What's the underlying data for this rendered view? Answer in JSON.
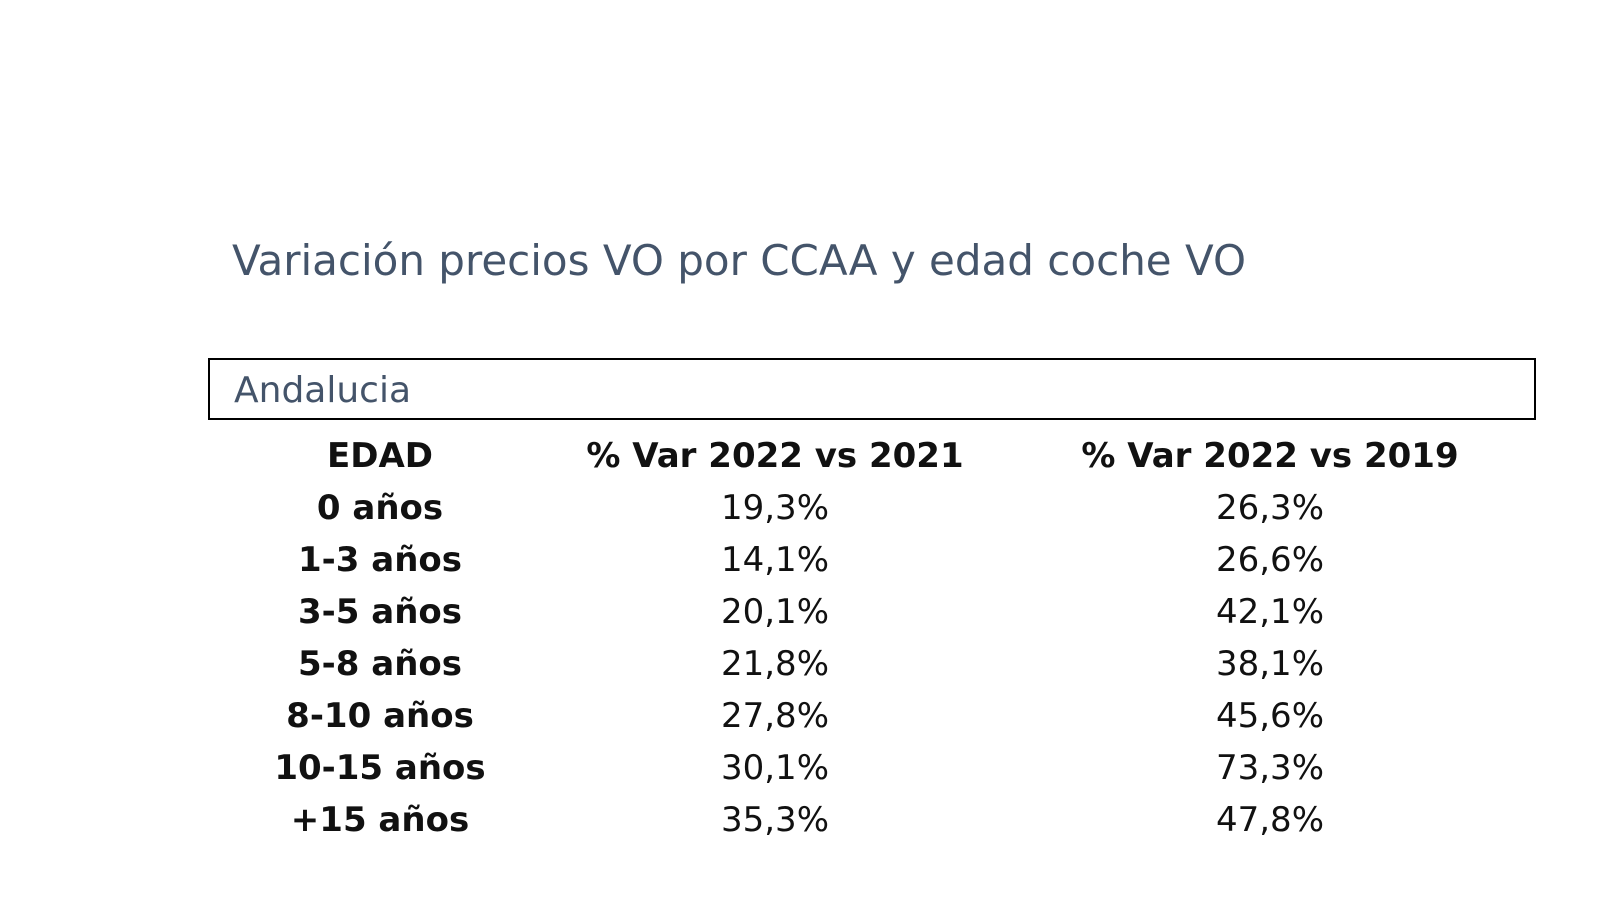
{
  "title": "Variación precios VO por CCAA y edad coche VO",
  "region": "Andalucia",
  "table": {
    "header": [
      "EDAD",
      "% Var 2022 vs 2021",
      "% Var 2022 vs 2019"
    ],
    "rows": [
      [
        "0 años",
        "19,3%",
        "26,3%"
      ],
      [
        "1-3 años",
        "14,1%",
        "26,6%"
      ],
      [
        "3-5 años",
        "20,1%",
        "42,1%"
      ],
      [
        "5-8 años",
        "21,8%",
        "38,1%"
      ],
      [
        "8-10 años",
        "27,8%",
        "45,6%"
      ],
      [
        "10-15 años",
        "30,1%",
        "73,3%"
      ],
      [
        "+15 años",
        "35,3%",
        "47,8%"
      ]
    ]
  }
}
